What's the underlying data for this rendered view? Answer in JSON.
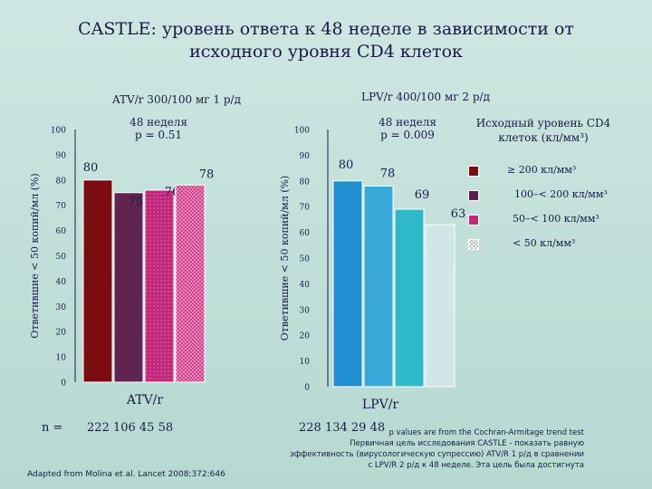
{
  "title": {
    "line1": "CASTLE: уровень ответа к 48 неделе в зависимости от",
    "line2": "исходного уровня CD4 клеток"
  },
  "n_label": "n =",
  "legend": {
    "title_line1": "Исходный уровень CD4",
    "title_line2": "клеток (кл/мм³)",
    "items": [
      {
        "label": "≥ 200 кл/мм³",
        "color": "#7a0c12",
        "pattern": "solid"
      },
      {
        "label": "100–< 200 кл/мм³",
        "color": "#5a1e4a",
        "pattern": "hatch"
      },
      {
        "label": "50–< 100 кл/мм³",
        "color": "#c0287a",
        "pattern": "dots"
      },
      {
        "label": "< 50 кл/мм³",
        "color": "#b8b8b8",
        "pattern": "check"
      }
    ]
  },
  "footer": {
    "line1": "p values are from the Cochran-Armitage trend test",
    "line2": "Первичная цель исследования CASTLE - показать равную",
    "line3": "эффективность (вирусологическую супрессию) ATV/R 1 р/д в сравнении",
    "line4": "с LPV/R 2 р/д к 48 неделе. Эта цель была достигнута",
    "source": "Adapted from Molina et al. Lancet 2008;372:646"
  },
  "chart_data": [
    {
      "type": "bar",
      "title": "ATV/r 300/100 мг 1 р/д",
      "subtitle_line1": "48 неделя",
      "subtitle_line2": "p = 0.51",
      "ylabel": "Ответившие < 50 копий/мл (%)",
      "xlabel": "ATV/r",
      "ylim": [
        0,
        100
      ],
      "yticks": [
        "0",
        "10",
        "20",
        "30",
        "40",
        "50",
        "60",
        "70",
        "80",
        "90",
        "100"
      ],
      "categories": [
        "≥ 200",
        "100–< 200",
        "50–< 100",
        "< 50"
      ],
      "values": [
        80,
        75,
        76,
        78
      ],
      "value_labels": [
        "80",
        "75",
        "76",
        "78"
      ],
      "n": "222  106  45  58",
      "colors": [
        "#7a0c12",
        "#5a1e4a",
        "#c0287a",
        "#d44a8a"
      ]
    },
    {
      "type": "bar",
      "title": "LPV/r 400/100 мг 2 р/д",
      "subtitle_line1": "48 неделя",
      "subtitle_line2": "p = 0.009",
      "ylabel": "Ответившие < 50 копий/мл (%)",
      "xlabel": "LPV/r",
      "ylim": [
        0,
        100
      ],
      "yticks": [
        "0",
        "10",
        "20",
        "30",
        "40",
        "50",
        "60",
        "70",
        "80",
        "90",
        "100"
      ],
      "categories": [
        "≥ 200",
        "100–< 200",
        "50–< 100",
        "< 50"
      ],
      "values": [
        80,
        78,
        69,
        63
      ],
      "value_labels": [
        "80",
        "78",
        "69",
        "63"
      ],
      "n": "228  134  29  48",
      "colors": [
        "#1f8fcf",
        "#3aa8d8",
        "#2fb8c8",
        "#d0e6e8"
      ]
    }
  ]
}
